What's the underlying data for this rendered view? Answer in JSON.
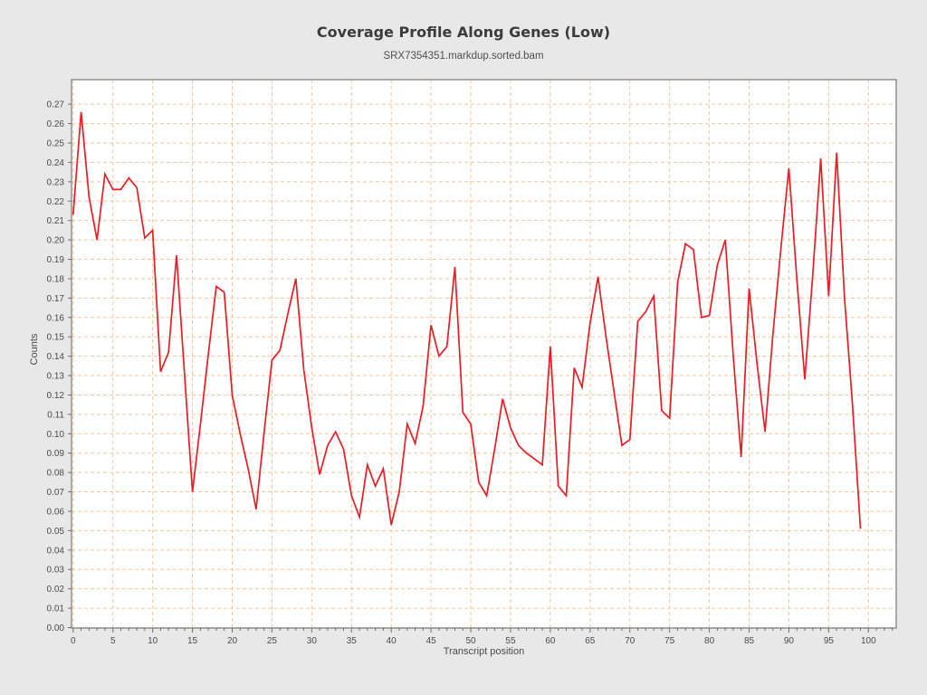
{
  "header": {
    "title": "Coverage Profile Along Genes (Low)",
    "subtitle": "SRX7354351.markdup.sorted.bam"
  },
  "chart_data": {
    "type": "line",
    "title": "Coverage Profile Along Genes (Low)",
    "subtitle": "SRX7354351.markdup.sorted.bam",
    "xlabel": "Transcript position",
    "ylabel": "Counts",
    "x": [
      0,
      1,
      2,
      3,
      4,
      5,
      6,
      7,
      8,
      9,
      10,
      11,
      12,
      13,
      14,
      15,
      16,
      17,
      18,
      19,
      20,
      21,
      22,
      23,
      24,
      25,
      26,
      27,
      28,
      29,
      30,
      31,
      32,
      33,
      34,
      35,
      36,
      37,
      38,
      39,
      40,
      41,
      42,
      43,
      44,
      45,
      46,
      47,
      48,
      49,
      50,
      51,
      52,
      53,
      54,
      55,
      56,
      57,
      58,
      59,
      60,
      61,
      62,
      63,
      64,
      65,
      66,
      67,
      68,
      69,
      70,
      71,
      72,
      73,
      74,
      75,
      76,
      77,
      78,
      79,
      80,
      81,
      82,
      83,
      84,
      85,
      86,
      87,
      88,
      89,
      90,
      91,
      92,
      93,
      94,
      95,
      96,
      97,
      98,
      99
    ],
    "values": [
      0.213,
      0.266,
      0.222,
      0.2,
      0.234,
      0.226,
      0.226,
      0.232,
      0.227,
      0.201,
      0.205,
      0.132,
      0.142,
      0.192,
      0.131,
      0.07,
      0.105,
      0.141,
      0.176,
      0.173,
      0.12,
      0.1,
      0.082,
      0.061,
      0.1,
      0.138,
      0.143,
      0.162,
      0.18,
      0.133,
      0.103,
      0.079,
      0.094,
      0.101,
      0.092,
      0.068,
      0.057,
      0.084,
      0.073,
      0.082,
      0.053,
      0.07,
      0.105,
      0.095,
      0.114,
      0.156,
      0.14,
      0.145,
      0.186,
      0.111,
      0.105,
      0.075,
      0.068,
      0.092,
      0.118,
      0.103,
      0.094,
      0.09,
      0.087,
      0.084,
      0.145,
      0.073,
      0.068,
      0.134,
      0.124,
      0.157,
      0.181,
      0.15,
      0.122,
      0.094,
      0.097,
      0.158,
      0.163,
      0.171,
      0.112,
      0.108,
      0.178,
      0.198,
      0.195,
      0.16,
      0.161,
      0.187,
      0.2,
      0.14,
      0.088,
      0.175,
      0.136,
      0.101,
      0.152,
      0.196,
      0.237,
      0.18,
      0.128,
      0.182,
      0.242,
      0.171,
      0.245,
      0.17,
      0.115,
      0.051
    ],
    "ylim": [
      0,
      0.27
    ],
    "xlim": [
      0,
      100
    ],
    "y_tick_step": 0.01,
    "x_tick_step": 5,
    "x_minor_tick_step": 1,
    "x_tick_labels": [
      "0",
      "5",
      "10",
      "15",
      "20",
      "25",
      "30",
      "35",
      "40",
      "45",
      "50",
      "55",
      "60",
      "65",
      "70",
      "75",
      "80",
      "85",
      "90",
      "95",
      "100"
    ],
    "y_tick_labels": [
      "0.00",
      "0.01",
      "0.02",
      "0.03",
      "0.04",
      "0.05",
      "0.06",
      "0.07",
      "0.08",
      "0.09",
      "0.10",
      "0.11",
      "0.12",
      "0.13",
      "0.14",
      "0.15",
      "0.16",
      "0.17",
      "0.18",
      "0.19",
      "0.20",
      "0.21",
      "0.22",
      "0.23",
      "0.24",
      "0.25",
      "0.26",
      "0.27"
    ],
    "grid": true,
    "legend_position": "none",
    "series_color": "#ec1c24",
    "grid_color": "#f8c59b",
    "plot_background": "#ffffff",
    "page_background": "#e8e8e8",
    "border_color": "#8a8a8a",
    "tick_text_color": "#4a4a4a"
  }
}
